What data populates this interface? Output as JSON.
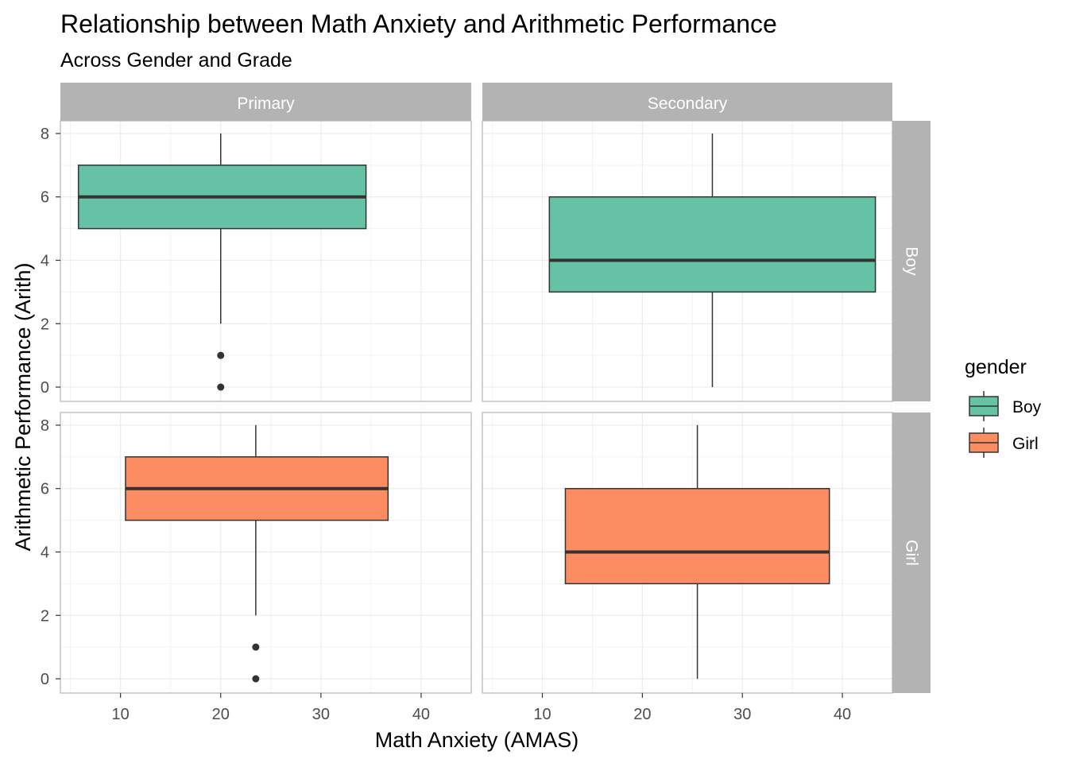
{
  "chart_data": {
    "type": "boxplot",
    "title": "Relationship between Math Anxiety and Arithmetic Performance",
    "subtitle": "Across Gender and Grade",
    "xlabel": "Math Anxiety (AMAS)",
    "ylabel": "Arithmetic Performance (Arith)",
    "xlim": [
      4,
      45
    ],
    "ylim": [
      -0.45,
      8.4
    ],
    "x_ticks": [
      10,
      20,
      30,
      40
    ],
    "y_ticks": [
      0,
      2,
      4,
      6,
      8
    ],
    "grid": true,
    "facet_columns": [
      "Primary",
      "Secondary"
    ],
    "facet_rows": [
      "Boy",
      "Girl"
    ],
    "legend": {
      "title": "gender",
      "position": "right",
      "entries": [
        {
          "label": "Boy",
          "color": "#66c2a5"
        },
        {
          "label": "Girl",
          "color": "#fc8d62"
        }
      ]
    },
    "colors": {
      "strip_bg": "#b3b3b3",
      "box_outline": "#333333",
      "grid": "#ebebeb"
    },
    "panels": [
      {
        "column": "Primary",
        "row": "Boy",
        "x_min": 5.8,
        "x_max": 34.5,
        "x_center": 20,
        "lower_whisker": 2,
        "q1": 5,
        "median": 6,
        "q3": 7,
        "upper_whisker": 8,
        "outliers": [
          0,
          1
        ]
      },
      {
        "column": "Secondary",
        "row": "Boy",
        "x_min": 10.7,
        "x_max": 43.3,
        "x_center": 27,
        "lower_whisker": 0,
        "q1": 3,
        "median": 4,
        "q3": 6,
        "upper_whisker": 8,
        "outliers": []
      },
      {
        "column": "Primary",
        "row": "Girl",
        "x_min": 10.5,
        "x_max": 36.7,
        "x_center": 23.5,
        "lower_whisker": 2,
        "q1": 5,
        "median": 6,
        "q3": 7,
        "upper_whisker": 8,
        "outliers": [
          0,
          1
        ]
      },
      {
        "column": "Secondary",
        "row": "Girl",
        "x_min": 12.3,
        "x_max": 38.7,
        "x_center": 25.5,
        "lower_whisker": 0,
        "q1": 3,
        "median": 4,
        "q3": 6,
        "upper_whisker": 8,
        "outliers": []
      }
    ]
  }
}
